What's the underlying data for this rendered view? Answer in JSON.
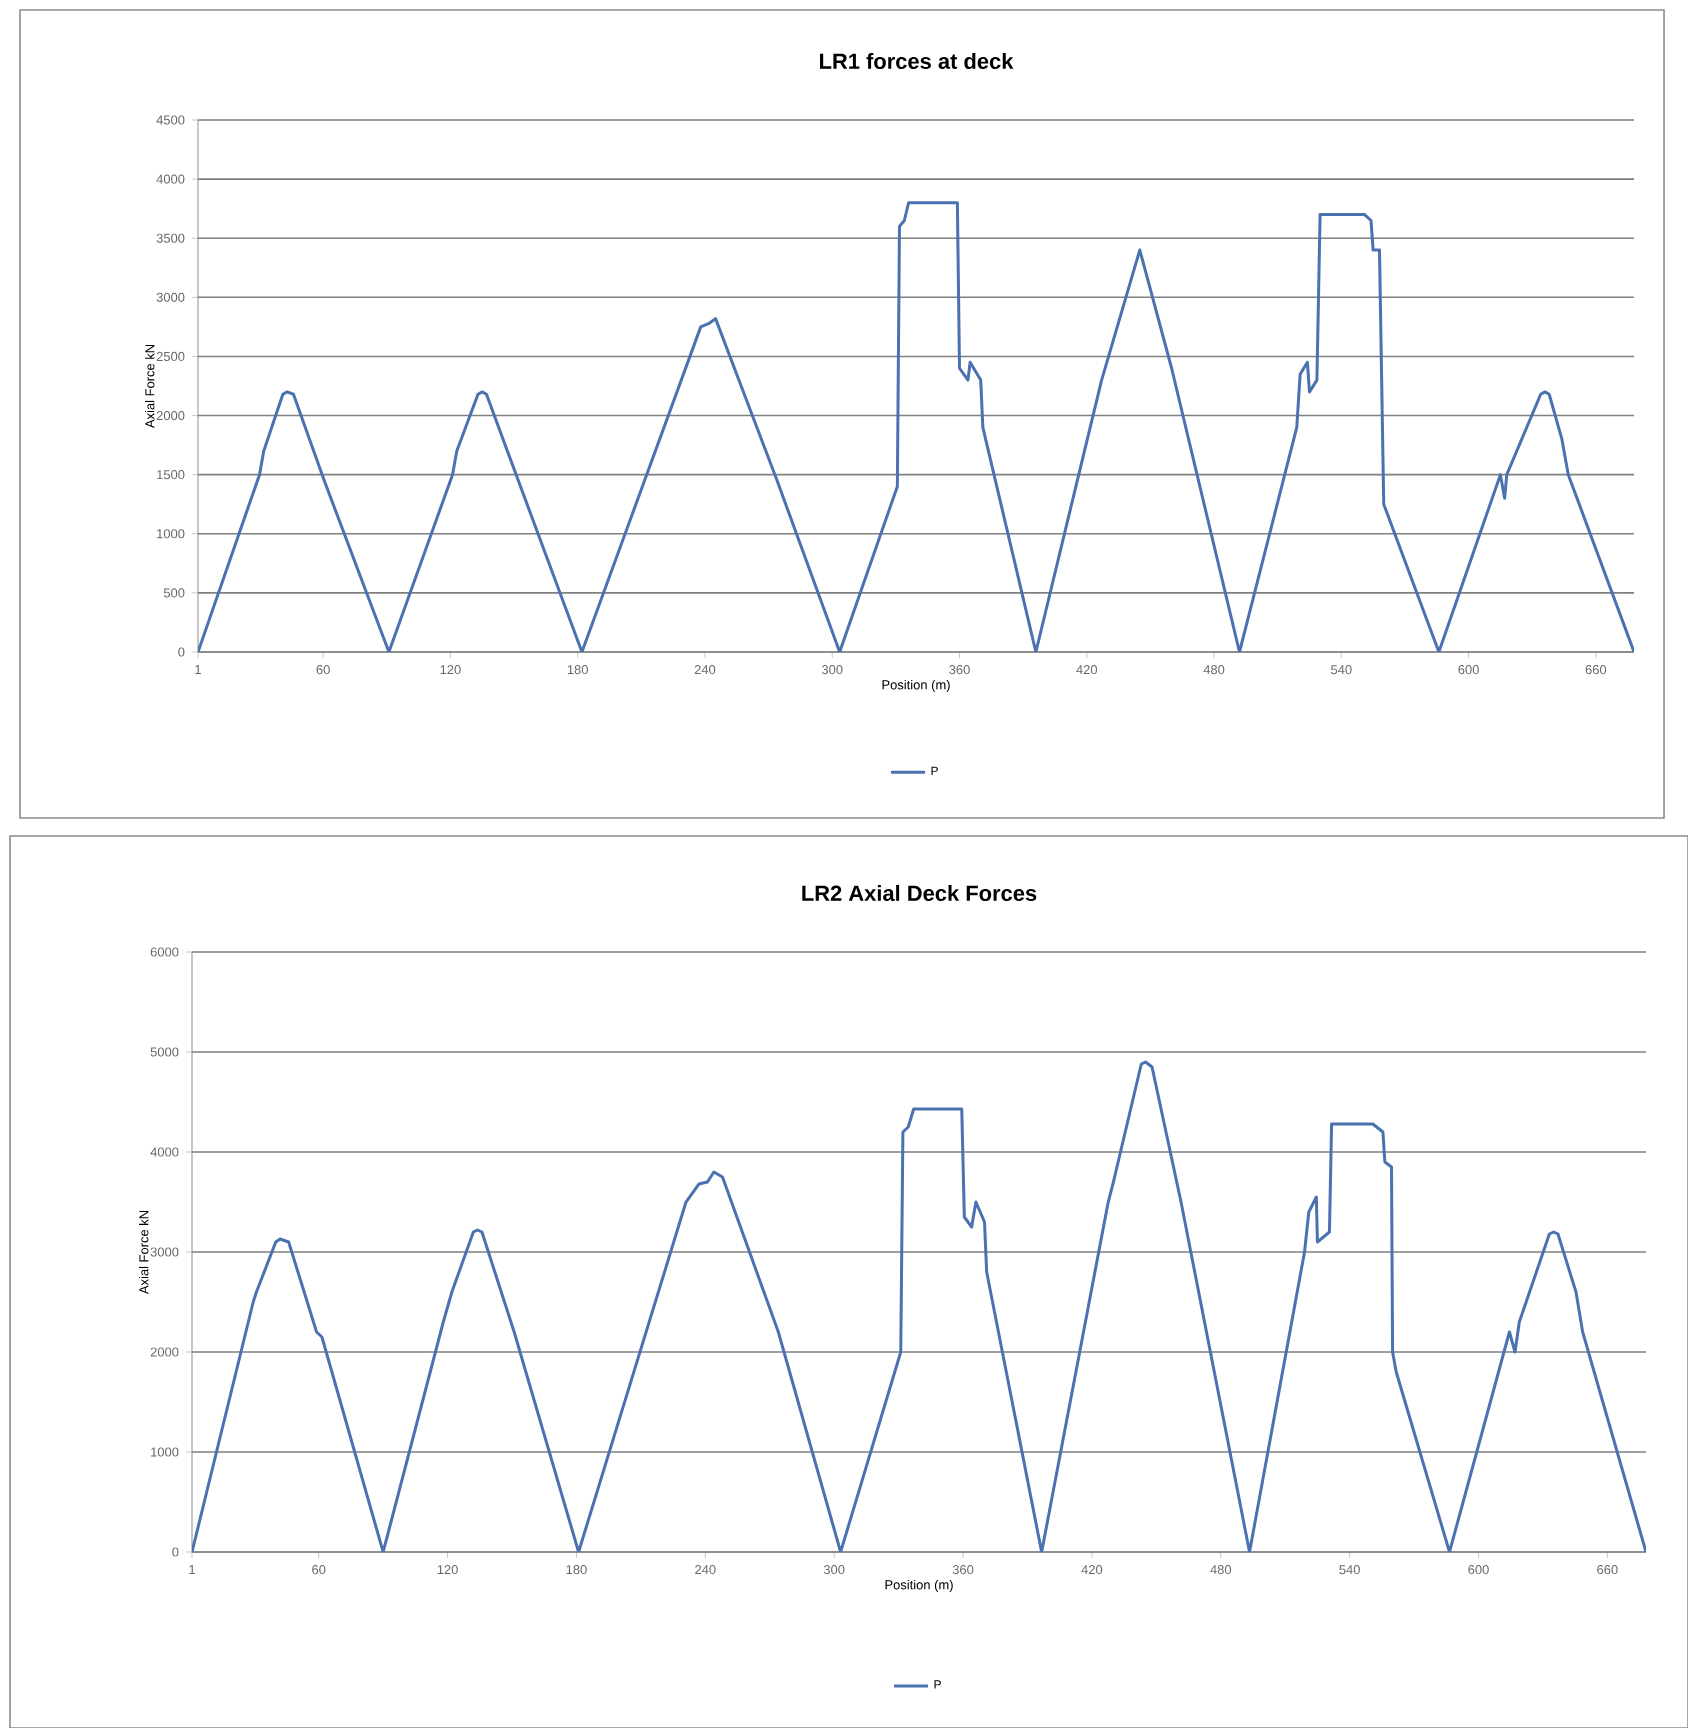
{
  "chart_data": [
    {
      "type": "line",
      "title": "LR1 forces at deck",
      "xlabel": "Position (m)",
      "ylabel": "Axial Force kN",
      "xlim": [
        1,
        678
      ],
      "ylim": [
        0,
        4500
      ],
      "xticks": [
        1,
        60,
        120,
        180,
        240,
        300,
        360,
        420,
        480,
        540,
        600,
        660
      ],
      "yticks": [
        0,
        500,
        1000,
        1500,
        2000,
        2500,
        3000,
        3500,
        4000,
        4500
      ],
      "grid": "y",
      "legend": "bottom",
      "series": [
        {
          "name": "P",
          "color": "#4a72b0",
          "x": [
            1,
            30,
            32,
            41,
            43,
            46,
            60.5,
            91,
            121,
            123,
            133,
            135,
            137,
            152,
            182,
            238,
            242,
            245,
            274,
            303.5,
            330.7,
            331.7,
            334,
            336,
            359,
            360,
            364,
            365,
            370,
            371,
            396,
            427,
            445,
            460,
            492,
            519,
            520.6,
            524,
            525,
            528.5,
            530,
            551,
            554,
            555,
            558,
            560,
            586,
            615,
            617,
            618,
            634,
            636,
            638,
            644,
            647,
            678
          ],
          "values": [
            0,
            1500,
            1700,
            2180,
            2200,
            2180,
            1450,
            0,
            1500,
            1700,
            2180,
            2200,
            2180,
            1450,
            0,
            2750,
            2780,
            2820,
            1450,
            0,
            1400,
            3600,
            3650,
            3800,
            3800,
            2400,
            2300,
            2450,
            2300,
            1900,
            0,
            2300,
            3400,
            2400,
            0,
            1900,
            2350,
            2450,
            2200,
            2300,
            3700,
            3700,
            3650,
            3400,
            3400,
            1250,
            0,
            1500,
            1300,
            1500,
            2180,
            2200,
            2180,
            1800,
            1500,
            0
          ]
        }
      ]
    },
    {
      "type": "line",
      "title": "LR2 Axial Deck Forces",
      "xlabel": "Position (m)",
      "ylabel": "Axial Force kN",
      "xlim": [
        1,
        678
      ],
      "ylim": [
        0,
        6000
      ],
      "xticks": [
        1,
        60,
        120,
        180,
        240,
        300,
        360,
        420,
        480,
        540,
        600,
        660
      ],
      "yticks": [
        0,
        1000,
        2000,
        3000,
        4000,
        5000,
        6000
      ],
      "grid": "y",
      "legend": "bottom",
      "series": [
        {
          "name": "P",
          "color": "#4a72b0",
          "x": [
            1,
            29.5,
            31,
            40,
            42,
            46,
            59,
            61.5,
            90,
            118,
            122,
            132,
            134,
            136,
            151,
            181,
            231,
            237,
            241,
            244,
            248,
            274,
            303,
            331,
            332,
            334.5,
            337,
            359.4,
            360.6,
            364,
            366,
            370,
            371,
            396.6,
            427.6,
            430,
            443,
            445,
            448,
            461.5,
            493.4,
            519,
            521,
            524.5,
            525,
            530.6,
            531.6,
            550.8,
            555.5,
            556.4,
            559.5,
            560,
            561.7,
            586.5,
            614.4,
            617,
            619,
            633,
            635,
            637,
            645.4,
            648.5,
            678
          ],
          "values": [
            0,
            2500,
            2600,
            3100,
            3130,
            3100,
            2200,
            2150,
            0,
            2300,
            2600,
            3200,
            3220,
            3200,
            2200,
            0,
            3500,
            3680,
            3700,
            3800,
            3750,
            2200,
            0,
            2000,
            4200,
            4250,
            4430,
            4430,
            3350,
            3250,
            3500,
            3300,
            2800,
            0,
            3500,
            3700,
            4880,
            4900,
            4850,
            3500,
            0,
            3000,
            3400,
            3550,
            3100,
            3200,
            4280,
            4280,
            4200,
            3900,
            3850,
            2000,
            1800,
            0,
            2200,
            2000,
            2300,
            3180,
            3200,
            3180,
            2600,
            2200,
            0
          ]
        }
      ]
    }
  ]
}
